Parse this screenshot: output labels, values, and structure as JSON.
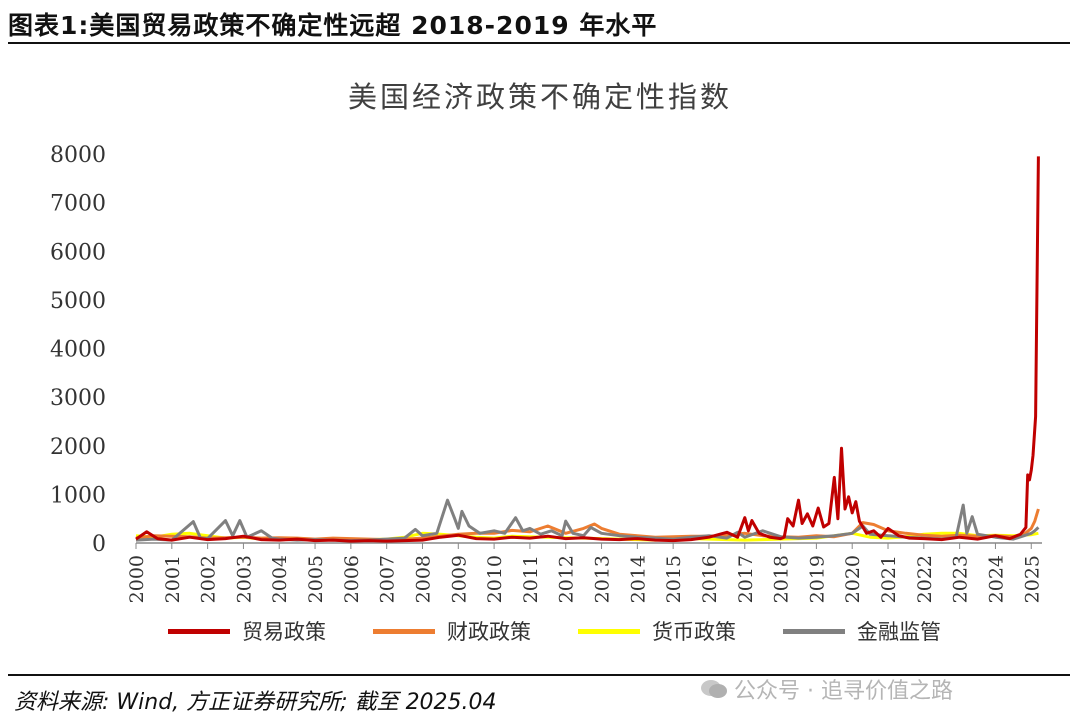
{
  "figure_title": "图表1:美国贸易政策不确定性远超 2018-2019 年水平",
  "source_note": "资料来源: Wind, 方正证券研究所; 截至 2025.04",
  "watermark": "公众号 · 追寻价值之路",
  "chart_data": {
    "type": "line",
    "title": "美国经济政策不确定性指数",
    "xlabel": "",
    "ylabel": "",
    "ylim": [
      0,
      8000
    ],
    "yticks": [
      0,
      1000,
      2000,
      3000,
      4000,
      5000,
      6000,
      7000,
      8000
    ],
    "xlim": [
      2000,
      2025.3
    ],
    "xticks": [
      "2000",
      "2001",
      "2002",
      "2003",
      "2004",
      "2005",
      "2006",
      "2007",
      "2008",
      "2009",
      "2010",
      "2011",
      "2012",
      "2013",
      "2014",
      "2015",
      "2016",
      "2017",
      "2018",
      "2019",
      "2020",
      "2021",
      "2022",
      "2023",
      "2024",
      "2025"
    ],
    "grid": false,
    "legend_position": "bottom",
    "series": [
      {
        "name": "贸易政策",
        "color": "#C00000",
        "points": [
          [
            2000,
            80
          ],
          [
            2000.3,
            230
          ],
          [
            2000.6,
            90
          ],
          [
            2001,
            60
          ],
          [
            2001.5,
            120
          ],
          [
            2002,
            70
          ],
          [
            2002.5,
            90
          ],
          [
            2003,
            140
          ],
          [
            2003.5,
            70
          ],
          [
            2004,
            60
          ],
          [
            2004.5,
            80
          ],
          [
            2005,
            50
          ],
          [
            2005.5,
            60
          ],
          [
            2006,
            40
          ],
          [
            2006.5,
            50
          ],
          [
            2007,
            40
          ],
          [
            2007.5,
            50
          ],
          [
            2008,
            60
          ],
          [
            2008.5,
            120
          ],
          [
            2009,
            160
          ],
          [
            2009.5,
            90
          ],
          [
            2010,
            80
          ],
          [
            2010.5,
            120
          ],
          [
            2011,
            100
          ],
          [
            2011.5,
            140
          ],
          [
            2012,
            90
          ],
          [
            2012.5,
            110
          ],
          [
            2013,
            80
          ],
          [
            2013.5,
            70
          ],
          [
            2014,
            90
          ],
          [
            2014.5,
            60
          ],
          [
            2015,
            50
          ],
          [
            2015.5,
            70
          ],
          [
            2016,
            120
          ],
          [
            2016.5,
            220
          ],
          [
            2016.8,
            120
          ],
          [
            2017,
            520
          ],
          [
            2017.1,
            250
          ],
          [
            2017.2,
            460
          ],
          [
            2017.4,
            200
          ],
          [
            2017.7,
            120
          ],
          [
            2018,
            90
          ],
          [
            2018.1,
            120
          ],
          [
            2018.2,
            500
          ],
          [
            2018.35,
            350
          ],
          [
            2018.5,
            880
          ],
          [
            2018.6,
            400
          ],
          [
            2018.75,
            600
          ],
          [
            2018.9,
            350
          ],
          [
            2019.05,
            720
          ],
          [
            2019.2,
            330
          ],
          [
            2019.35,
            400
          ],
          [
            2019.5,
            1350
          ],
          [
            2019.6,
            500
          ],
          [
            2019.7,
            1950
          ],
          [
            2019.8,
            700
          ],
          [
            2019.9,
            950
          ],
          [
            2020,
            620
          ],
          [
            2020.1,
            850
          ],
          [
            2020.2,
            450
          ],
          [
            2020.4,
            200
          ],
          [
            2020.6,
            250
          ],
          [
            2020.8,
            120
          ],
          [
            2021,
            300
          ],
          [
            2021.3,
            150
          ],
          [
            2021.6,
            100
          ],
          [
            2022,
            90
          ],
          [
            2022.5,
            70
          ],
          [
            2023,
            120
          ],
          [
            2023.5,
            80
          ],
          [
            2024,
            150
          ],
          [
            2024.4,
            90
          ],
          [
            2024.7,
            180
          ],
          [
            2024.85,
            320
          ],
          [
            2024.9,
            1400
          ],
          [
            2024.95,
            1300
          ],
          [
            2025,
            1500
          ],
          [
            2025.05,
            1800
          ],
          [
            2025.12,
            2600
          ],
          [
            2025.2,
            7950
          ]
        ]
      },
      {
        "name": "财政政策",
        "color": "#ED7D31",
        "points": [
          [
            2000,
            100
          ],
          [
            2000.5,
            150
          ],
          [
            2001,
            140
          ],
          [
            2001.5,
            130
          ],
          [
            2002,
            100
          ],
          [
            2002.5,
            110
          ],
          [
            2003,
            120
          ],
          [
            2003.5,
            100
          ],
          [
            2004,
            110
          ],
          [
            2004.5,
            100
          ],
          [
            2005,
            80
          ],
          [
            2005.5,
            100
          ],
          [
            2006,
            90
          ],
          [
            2006.5,
            80
          ],
          [
            2007,
            70
          ],
          [
            2007.5,
            80
          ],
          [
            2008,
            100
          ],
          [
            2008.5,
            140
          ],
          [
            2009,
            180
          ],
          [
            2009.5,
            200
          ],
          [
            2010,
            200
          ],
          [
            2010.5,
            260
          ],
          [
            2011,
            230
          ],
          [
            2011.5,
            350
          ],
          [
            2012,
            200
          ],
          [
            2012.5,
            300
          ],
          [
            2012.8,
            390
          ],
          [
            2013,
            300
          ],
          [
            2013.5,
            180
          ],
          [
            2014,
            150
          ],
          [
            2014.5,
            120
          ],
          [
            2015,
            130
          ],
          [
            2015.5,
            140
          ],
          [
            2016,
            140
          ],
          [
            2016.5,
            160
          ],
          [
            2017,
            200
          ],
          [
            2017.5,
            150
          ],
          [
            2018,
            130
          ],
          [
            2018.5,
            120
          ],
          [
            2019,
            150
          ],
          [
            2019.5,
            130
          ],
          [
            2020,
            200
          ],
          [
            2020.3,
            420
          ],
          [
            2020.6,
            380
          ],
          [
            2021,
            250
          ],
          [
            2021.5,
            200
          ],
          [
            2022,
            160
          ],
          [
            2022.5,
            140
          ],
          [
            2023,
            160
          ],
          [
            2023.5,
            140
          ],
          [
            2024,
            150
          ],
          [
            2024.5,
            130
          ],
          [
            2024.8,
            180
          ],
          [
            2025,
            300
          ],
          [
            2025.1,
            450
          ],
          [
            2025.2,
            700
          ]
        ]
      },
      {
        "name": "货币政策",
        "color": "#FFFF00",
        "points": [
          [
            2000,
            150
          ],
          [
            2000.5,
            120
          ],
          [
            2001,
            180
          ],
          [
            2001.5,
            200
          ],
          [
            2002,
            150
          ],
          [
            2002.5,
            100
          ],
          [
            2003,
            120
          ],
          [
            2003.5,
            80
          ],
          [
            2004,
            100
          ],
          [
            2004.5,
            90
          ],
          [
            2005,
            70
          ],
          [
            2005.5,
            80
          ],
          [
            2006,
            60
          ],
          [
            2006.5,
            70
          ],
          [
            2007,
            80
          ],
          [
            2007.5,
            120
          ],
          [
            2008,
            200
          ],
          [
            2008.5,
            180
          ],
          [
            2009,
            150
          ],
          [
            2009.5,
            120
          ],
          [
            2010,
            100
          ],
          [
            2010.5,
            140
          ],
          [
            2011,
            130
          ],
          [
            2011.5,
            120
          ],
          [
            2012,
            110
          ],
          [
            2012.5,
            100
          ],
          [
            2013,
            90
          ],
          [
            2013.5,
            80
          ],
          [
            2014,
            70
          ],
          [
            2014.5,
            60
          ],
          [
            2015,
            80
          ],
          [
            2015.5,
            90
          ],
          [
            2016,
            80
          ],
          [
            2016.5,
            70
          ],
          [
            2017,
            60
          ],
          [
            2017.5,
            70
          ],
          [
            2018,
            80
          ],
          [
            2018.5,
            90
          ],
          [
            2019,
            100
          ],
          [
            2019.5,
            150
          ],
          [
            2020,
            200
          ],
          [
            2020.5,
            120
          ],
          [
            2021,
            100
          ],
          [
            2021.5,
            130
          ],
          [
            2022,
            180
          ],
          [
            2022.5,
            200
          ],
          [
            2023,
            200
          ],
          [
            2023.5,
            150
          ],
          [
            2024,
            160
          ],
          [
            2024.5,
            150
          ],
          [
            2025,
            170
          ],
          [
            2025.2,
            200
          ]
        ]
      },
      {
        "name": "金融监管",
        "color": "#808080",
        "points": [
          [
            2000,
            60
          ],
          [
            2000.5,
            80
          ],
          [
            2001,
            60
          ],
          [
            2001.6,
            440
          ],
          [
            2001.8,
            100
          ],
          [
            2002,
            90
          ],
          [
            2002.5,
            460
          ],
          [
            2002.7,
            150
          ],
          [
            2002.9,
            460
          ],
          [
            2003.1,
            120
          ],
          [
            2003.5,
            250
          ],
          [
            2003.8,
            100
          ],
          [
            2004,
            80
          ],
          [
            2004.5,
            60
          ],
          [
            2005,
            70
          ],
          [
            2005.5,
            60
          ],
          [
            2006,
            50
          ],
          [
            2006.5,
            60
          ],
          [
            2007,
            80
          ],
          [
            2007.5,
            100
          ],
          [
            2007.8,
            280
          ],
          [
            2008,
            150
          ],
          [
            2008.4,
            200
          ],
          [
            2008.7,
            880
          ],
          [
            2008.9,
            500
          ],
          [
            2009,
            300
          ],
          [
            2009.1,
            650
          ],
          [
            2009.3,
            350
          ],
          [
            2009.6,
            200
          ],
          [
            2010,
            250
          ],
          [
            2010.3,
            200
          ],
          [
            2010.6,
            520
          ],
          [
            2010.8,
            250
          ],
          [
            2011,
            300
          ],
          [
            2011.3,
            180
          ],
          [
            2011.6,
            250
          ],
          [
            2011.9,
            150
          ],
          [
            2012,
            450
          ],
          [
            2012.2,
            200
          ],
          [
            2012.5,
            150
          ],
          [
            2012.7,
            320
          ],
          [
            2013,
            200
          ],
          [
            2013.5,
            150
          ],
          [
            2014,
            120
          ],
          [
            2014.5,
            100
          ],
          [
            2015,
            80
          ],
          [
            2015.5,
            120
          ],
          [
            2016,
            150
          ],
          [
            2016.5,
            100
          ],
          [
            2016.8,
            220
          ],
          [
            2017,
            120
          ],
          [
            2017.5,
            250
          ],
          [
            2018,
            130
          ],
          [
            2018.5,
            100
          ],
          [
            2019,
            120
          ],
          [
            2019.5,
            150
          ],
          [
            2020,
            200
          ],
          [
            2020.3,
            350
          ],
          [
            2020.5,
            180
          ],
          [
            2021,
            150
          ],
          [
            2021.5,
            120
          ],
          [
            2022,
            100
          ],
          [
            2022.5,
            80
          ],
          [
            2022.9,
            120
          ],
          [
            2023.1,
            780
          ],
          [
            2023.2,
            200
          ],
          [
            2023.35,
            540
          ],
          [
            2023.5,
            180
          ],
          [
            2024,
            120
          ],
          [
            2024.5,
            80
          ],
          [
            2024.8,
            150
          ],
          [
            2025,
            200
          ],
          [
            2025.1,
            250
          ],
          [
            2025.2,
            320
          ]
        ]
      }
    ]
  }
}
